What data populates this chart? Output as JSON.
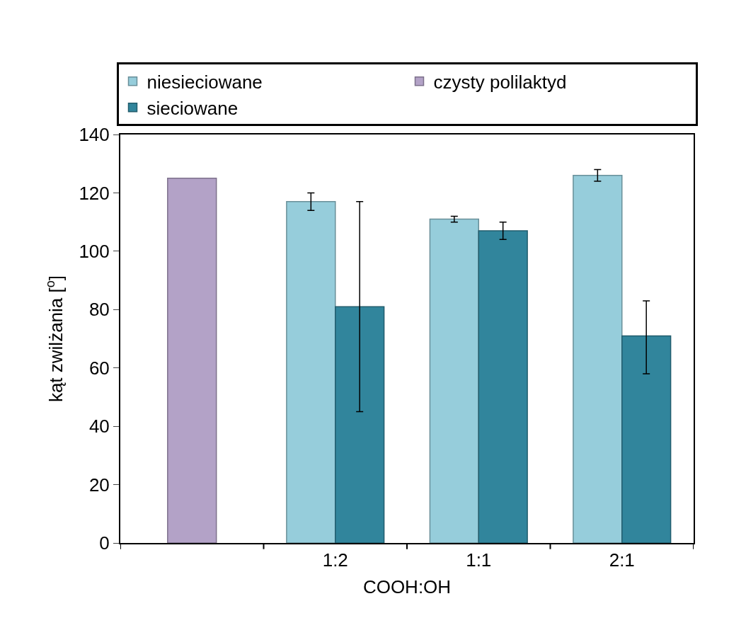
{
  "chart_data": {
    "type": "bar",
    "xlabel": "COOH:OH",
    "ylabel": "kąt zwilżania [$^{o}$]",
    "categories": [
      null,
      "1:2",
      "1:1",
      "2:1"
    ],
    "series": [
      {
        "name": "niesieciowane",
        "color": "#96cddb",
        "values": [
          null,
          117,
          111,
          126
        ],
        "errors": [
          null,
          3,
          1,
          2
        ]
      },
      {
        "name": "czysty polilaktyd",
        "color": "#b3a2c7",
        "values": [
          125,
          null,
          null,
          null
        ]
      },
      {
        "name": "sieciowane",
        "color": "#31859c",
        "values": [
          null,
          81,
          107,
          71
        ],
        "errors": [
          null,
          [
            45,
            117
          ],
          3,
          [
            58,
            83
          ]
        ]
      }
    ],
    "ylim": [
      0,
      140
    ],
    "yticks": [
      0,
      20,
      40,
      60,
      80,
      100,
      120,
      140
    ],
    "legend": "top"
  }
}
